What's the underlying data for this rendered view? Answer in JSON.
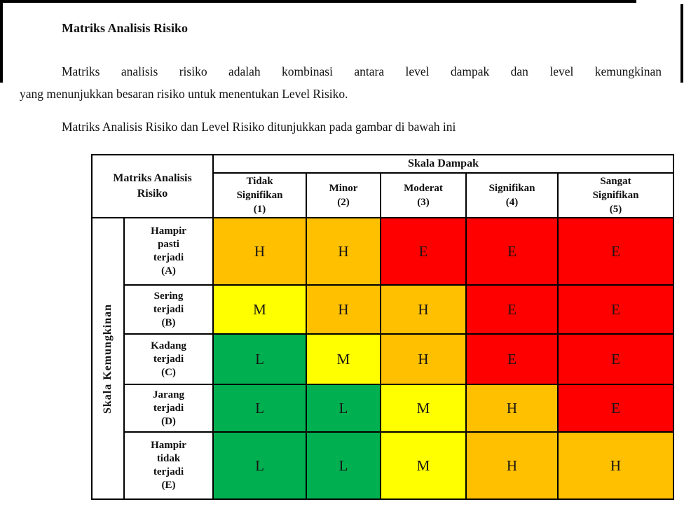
{
  "document": {
    "title": "Matriks Analisis Risiko",
    "intro_line1": "Matriks analisis risiko adalah kombinasi antara level dampak dan level kemungkinan",
    "intro_line2": "yang menunjukkan besaran risiko untuk menentukan Level Risiko.",
    "caption": "Matriks Analisis Risiko dan Level Risiko ditunjukkan pada gambar di bawah ini"
  },
  "level_colors": {
    "L": "#00B050",
    "M": "#FFFF00",
    "H": "#FFC000",
    "E": "#FF0000"
  },
  "table": {
    "corner_label": "Matriks Analisis\nRisiko",
    "impact_axis_label": "Skala Dampak",
    "likelihood_axis_label": "Skala Kemungkinan",
    "impact_headers": [
      "Tidak\nSignifikan\n(1)",
      "Minor\n(2)",
      "Moderat\n(3)",
      "Signifikan\n(4)",
      "Sangat\nSignifikan\n(5)"
    ],
    "rows": [
      {
        "label": "Hampir\npasti\nterjadi\n(A)",
        "cells": [
          "H",
          "H",
          "E",
          "E",
          "E"
        ],
        "top_divider": true
      },
      {
        "label": "Sering\nterjadi\n(B)",
        "cells": [
          "M",
          "H",
          "H",
          "E",
          "E"
        ],
        "top_divider": true
      },
      {
        "label": "Kadang\nterjadi\n(C)",
        "cells": [
          "L",
          "M",
          "H",
          "E",
          "E"
        ],
        "top_divider": false
      },
      {
        "label": "Jarang\nterjadi\n(D)",
        "cells": [
          "L",
          "L",
          "M",
          "H",
          "E"
        ],
        "top_divider": false
      },
      {
        "label": "Hampir\ntidak\nterjadi\n(E)",
        "cells": [
          "L",
          "L",
          "M",
          "H",
          "H"
        ],
        "top_divider": true
      }
    ]
  },
  "chart_data": {
    "type": "heatmap",
    "title": "Matriks Analisis Risiko",
    "x_axis_label": "Skala Dampak",
    "y_axis_label": "Skala Kemungkinan",
    "x_categories": [
      "Tidak Signifikan (1)",
      "Minor (2)",
      "Moderat (3)",
      "Signifikan (4)",
      "Sangat Signifikan (5)"
    ],
    "y_categories": [
      "Hampir pasti terjadi (A)",
      "Sering terjadi (B)",
      "Kadang terjadi (C)",
      "Jarang terjadi (D)",
      "Hampir tidak terjadi (E)"
    ],
    "values": [
      [
        "H",
        "H",
        "E",
        "E",
        "E"
      ],
      [
        "M",
        "H",
        "H",
        "E",
        "E"
      ],
      [
        "L",
        "M",
        "H",
        "E",
        "E"
      ],
      [
        "L",
        "L",
        "M",
        "H",
        "E"
      ],
      [
        "L",
        "L",
        "M",
        "H",
        "H"
      ]
    ],
    "cell_colors": {
      "L": "#00B050",
      "M": "#FFFF00",
      "H": "#FFC000",
      "E": "#FF0000"
    }
  }
}
